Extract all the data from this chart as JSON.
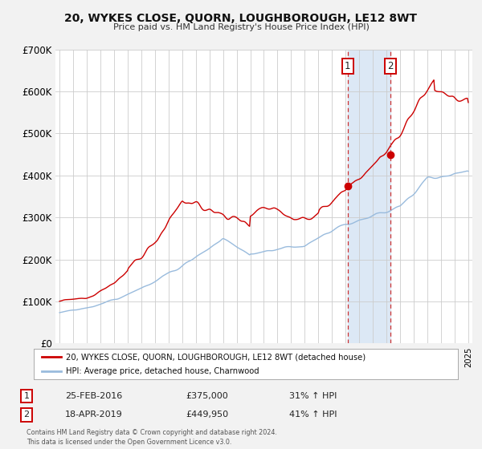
{
  "title": "20, WYKES CLOSE, QUORN, LOUGHBOROUGH, LE12 8WT",
  "subtitle": "Price paid vs. HM Land Registry's House Price Index (HPI)",
  "bg_color": "#f2f2f2",
  "plot_bg_color": "#ffffff",
  "grid_color": "#cccccc",
  "red_line_color": "#cc0000",
  "blue_line_color": "#99bbdd",
  "shade_color": "#dce8f5",
  "marker1_x": 2016.15,
  "marker1_y": 375000,
  "marker2_x": 2019.3,
  "marker2_y": 449950,
  "vline1_x": 2016.15,
  "vline2_x": 2019.3,
  "legend_label_red": "20, WYKES CLOSE, QUORN, LOUGHBOROUGH, LE12 8WT (detached house)",
  "legend_label_blue": "HPI: Average price, detached house, Charnwood",
  "table_row1": [
    "1",
    "25-FEB-2016",
    "£375,000",
    "31% ↑ HPI"
  ],
  "table_row2": [
    "2",
    "18-APR-2019",
    "£449,950",
    "41% ↑ HPI"
  ],
  "footer": "Contains HM Land Registry data © Crown copyright and database right 2024.\nThis data is licensed under the Open Government Licence v3.0.",
  "ylim": [
    0,
    700000
  ],
  "xlim": [
    1994.7,
    2025.3
  ],
  "ytick_labels": [
    "£0",
    "£100K",
    "£200K",
    "£300K",
    "£400K",
    "£500K",
    "£600K",
    "£700K"
  ],
  "ytick_values": [
    0,
    100000,
    200000,
    300000,
    400000,
    500000,
    600000,
    700000
  ]
}
